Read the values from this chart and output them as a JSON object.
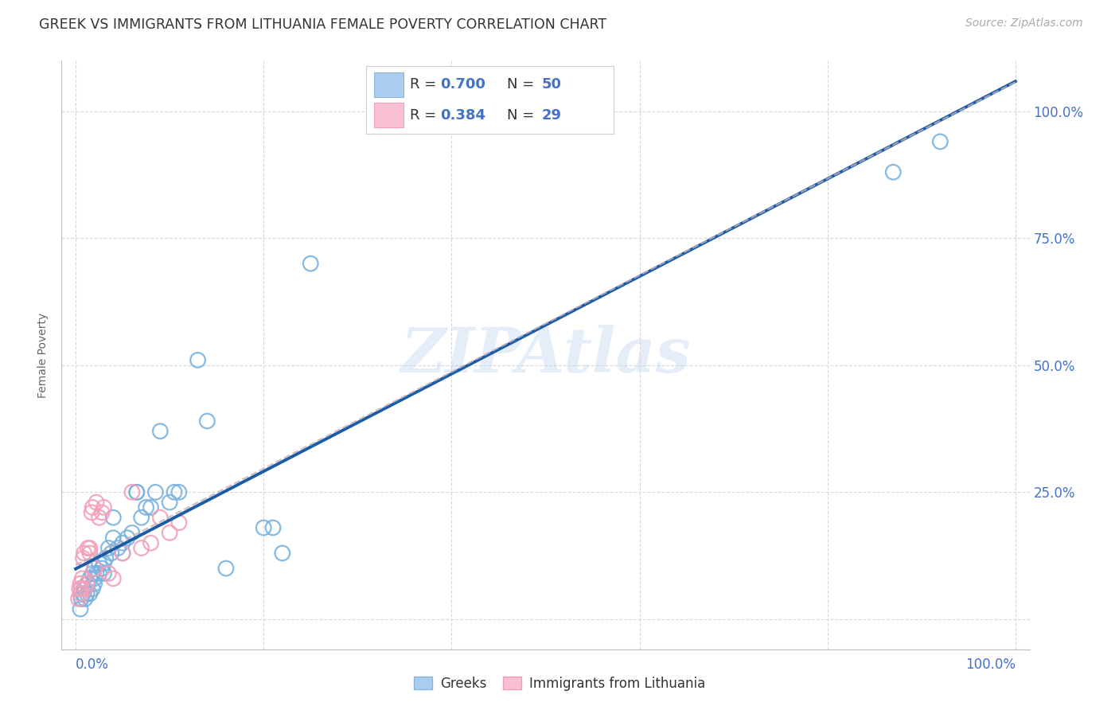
{
  "title": "GREEK VS IMMIGRANTS FROM LITHUANIA FEMALE POVERTY CORRELATION CHART",
  "source": "Source: ZipAtlas.com",
  "ylabel": "Female Poverty",
  "watermark": "ZIPAtlas",
  "blue_scatter_color": "#7ab3e0",
  "pink_scatter_color": "#f4a0b8",
  "blue_line_color": "#1a5ca8",
  "pink_line_color": "#c8a0b8",
  "blue_legend_color": "#4472c4",
  "pink_legend_num_color": "#e07090",
  "tick_label_color": "#4472c4",
  "grid_color": "#d8d8d8",
  "greeks_x": [
    0.005,
    0.006,
    0.008,
    0.009,
    0.01,
    0.01,
    0.012,
    0.013,
    0.015,
    0.015,
    0.018,
    0.018,
    0.02,
    0.02,
    0.02,
    0.022,
    0.025,
    0.025,
    0.028,
    0.03,
    0.03,
    0.032,
    0.035,
    0.038,
    0.04,
    0.04,
    0.045,
    0.05,
    0.05,
    0.055,
    0.06,
    0.065,
    0.065,
    0.07,
    0.075,
    0.08,
    0.085,
    0.09,
    0.1,
    0.105,
    0.11,
    0.13,
    0.14,
    0.16,
    0.2,
    0.21,
    0.22,
    0.25,
    0.87,
    0.92
  ],
  "greeks_y": [
    0.02,
    0.04,
    0.05,
    0.06,
    0.04,
    0.06,
    0.05,
    0.07,
    0.05,
    0.08,
    0.06,
    0.09,
    0.07,
    0.08,
    0.1,
    0.09,
    0.09,
    0.11,
    0.1,
    0.09,
    0.11,
    0.12,
    0.14,
    0.13,
    0.16,
    0.2,
    0.14,
    0.13,
    0.15,
    0.16,
    0.17,
    0.25,
    0.25,
    0.2,
    0.22,
    0.22,
    0.25,
    0.37,
    0.23,
    0.25,
    0.25,
    0.51,
    0.39,
    0.1,
    0.18,
    0.18,
    0.13,
    0.7,
    0.88,
    0.94
  ],
  "lithuania_x": [
    0.003,
    0.004,
    0.005,
    0.005,
    0.006,
    0.007,
    0.008,
    0.009,
    0.01,
    0.012,
    0.013,
    0.015,
    0.015,
    0.017,
    0.018,
    0.02,
    0.022,
    0.025,
    0.028,
    0.03,
    0.035,
    0.04,
    0.05,
    0.06,
    0.07,
    0.08,
    0.09,
    0.1,
    0.11
  ],
  "lithuania_y": [
    0.04,
    0.06,
    0.05,
    0.07,
    0.06,
    0.08,
    0.12,
    0.13,
    0.06,
    0.07,
    0.14,
    0.13,
    0.14,
    0.21,
    0.22,
    0.1,
    0.23,
    0.2,
    0.21,
    0.22,
    0.09,
    0.08,
    0.13,
    0.25,
    0.14,
    0.15,
    0.2,
    0.17,
    0.19
  ],
  "yticks": [
    0.0,
    0.25,
    0.5,
    0.75,
    1.0
  ],
  "ytick_labels": [
    "",
    "25.0%",
    "50.0%",
    "75.0%",
    "100.0%"
  ]
}
